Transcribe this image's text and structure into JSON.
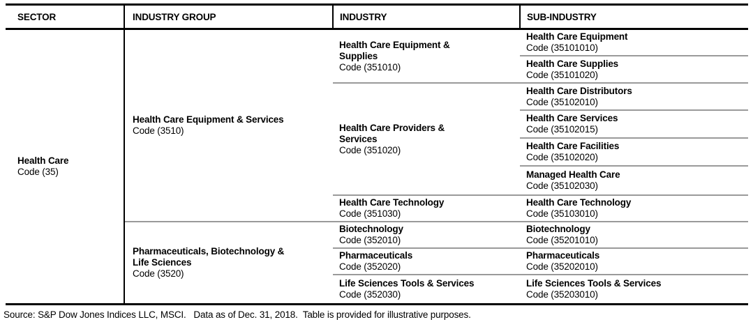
{
  "headers": [
    "SECTOR",
    "INDUSTRY  GROUP",
    "INDUSTRY",
    "SUB-INDUSTRY"
  ],
  "sector": {
    "name": "Health Care",
    "code": "Code (35)"
  },
  "groups": [
    {
      "name": "Health Care Equipment & Services",
      "code": "Code (3510)"
    },
    {
      "name": "Pharmaceuticals, Biotechnology &\nLife Sciences",
      "code": "Code (3520)"
    }
  ],
  "industries": [
    {
      "name": "Health Care Equipment &\nSupplies",
      "code": "Code (351010)"
    },
    {
      "name": "Health Care Providers &\nServices",
      "code": "Code (351020)"
    },
    {
      "name": "Health Care Technology",
      "code": "Code (351030)"
    },
    {
      "name": "Biotechnology",
      "code": "Code (352010)"
    },
    {
      "name": "Pharmaceuticals",
      "code": "Code (352020)"
    },
    {
      "name": "Life Sciences Tools & Services",
      "code": "Code (352030)"
    }
  ],
  "sub_industries": [
    {
      "name": "Health Care Equipment",
      "code": "Code (35101010)"
    },
    {
      "name": "Health Care Supplies",
      "code": "Code (35101020)"
    },
    {
      "name": "Health Care Distributors",
      "code": "Code (35102010)"
    },
    {
      "name": "Health Care Services",
      "code": "Code (35102015)"
    },
    {
      "name": "Health Care Facilities",
      "code": "Code (35102020)"
    },
    {
      "name": "Managed Health Care",
      "code": "Code (35102030)"
    },
    {
      "name": "Health Care Technology",
      "code": "Code (35103010)"
    },
    {
      "name": "Biotechnology",
      "code": "Code (35201010)"
    },
    {
      "name": "Pharmaceuticals",
      "code": "Code (35202010)"
    },
    {
      "name": "Life Sciences Tools & Services",
      "code": "Code (35203010)"
    }
  ],
  "footnote": "Source: S&P Dow Jones Indices LLC, MSCI.   Data as of Dec. 31, 2018.  Table is provided for illustrative purposes.",
  "colors": {
    "line_black": "#000000",
    "line_gray": "#9a9a9a",
    "text": "#000000",
    "background": "#ffffff"
  }
}
